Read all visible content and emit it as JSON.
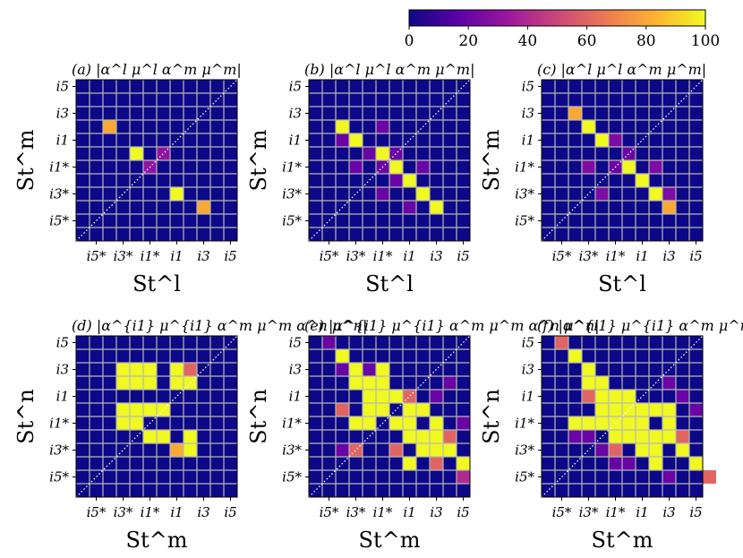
{
  "colorbar": {
    "ticks": [
      "0",
      "20",
      "40",
      "60",
      "80",
      "100"
    ],
    "stops": [
      "#0d0887",
      "#5c01a6",
      "#9c179e",
      "#cc4778",
      "#ed7953",
      "#fdb42f",
      "#f0f921"
    ]
  },
  "chart_data": [
    {
      "type": "heatmap",
      "panel": "(a)",
      "title": "(a) |α^l μ^l α^m μ^m|",
      "xlabel": "St^l",
      "ylabel": "St^m",
      "ticks": [
        "i5*",
        "i3*",
        "i1*",
        "i1",
        "i3",
        "i5"
      ],
      "grid_size": 12,
      "range": [
        0,
        100
      ],
      "cells": [
        [
          7,
          3,
          100
        ],
        [
          9,
          2,
          80
        ],
        [
          4,
          6,
          100
        ],
        [
          2,
          8,
          80
        ],
        [
          5,
          5,
          30
        ],
        [
          6,
          6,
          30
        ]
      ]
    },
    {
      "type": "heatmap",
      "panel": "(b)",
      "title": "(b) |α^l μ^l α^m μ^m|",
      "xlabel": "St^l",
      "ylabel": "St^m",
      "ticks": [
        "i5*",
        "i3*",
        "i1*",
        "i1",
        "i3",
        "i5"
      ],
      "grid_size": 12,
      "range": [
        0,
        100
      ],
      "cells": [
        [
          2,
          8,
          100
        ],
        [
          3,
          7,
          100
        ],
        [
          5,
          6,
          100
        ],
        [
          6,
          5,
          100
        ],
        [
          7,
          4,
          100
        ],
        [
          8,
          3,
          100
        ],
        [
          9,
          2,
          100
        ],
        [
          5,
          5,
          20
        ],
        [
          6,
          6,
          20
        ],
        [
          5,
          3,
          20
        ],
        [
          3,
          5,
          20
        ],
        [
          8,
          5,
          20
        ],
        [
          5,
          8,
          20
        ],
        [
          7,
          2,
          20
        ],
        [
          2,
          7,
          20
        ],
        [
          4,
          6,
          20
        ],
        [
          6,
          4,
          20
        ]
      ]
    },
    {
      "type": "heatmap",
      "panel": "(c)",
      "title": "(c) |α^l μ^l α^m μ^m|",
      "xlabel": "St^l",
      "ylabel": "St^m",
      "ticks": [
        "i5*",
        "i3*",
        "i1*",
        "i1",
        "i3",
        "i5"
      ],
      "grid_size": 12,
      "range": [
        0,
        100
      ],
      "cells": [
        [
          2,
          9,
          80
        ],
        [
          3,
          8,
          100
        ],
        [
          4,
          7,
          100
        ],
        [
          6,
          5,
          100
        ],
        [
          7,
          4,
          100
        ],
        [
          8,
          3,
          100
        ],
        [
          9,
          2,
          80
        ],
        [
          3,
          5,
          25
        ],
        [
          8,
          5,
          25
        ],
        [
          5,
          7,
          25
        ],
        [
          4,
          3,
          25
        ],
        [
          9,
          3,
          25
        ],
        [
          6,
          6,
          20
        ],
        [
          5,
          5,
          20
        ]
      ]
    },
    {
      "type": "heatmap",
      "panel": "(d)",
      "title": "(d) |α^{i1} μ^{i1} α^m μ^m α^n μ^n|",
      "xlabel": "St^m",
      "ylabel": "St^n",
      "ticks": [
        "i5*",
        "i3*",
        "i1*",
        "i1",
        "i3",
        "i5"
      ],
      "grid_size": 12,
      "range": [
        0,
        100
      ],
      "cells": [
        [
          5,
          4,
          100
        ],
        [
          6,
          4,
          100
        ],
        [
          5,
          6,
          100
        ],
        [
          6,
          6,
          100
        ],
        [
          8,
          4,
          100
        ],
        [
          8,
          3,
          100
        ],
        [
          7,
          3,
          80
        ],
        [
          4,
          5,
          100
        ],
        [
          4,
          6,
          100
        ],
        [
          3,
          5,
          100
        ],
        [
          3,
          6,
          100
        ],
        [
          3,
          8,
          100
        ],
        [
          4,
          8,
          100
        ],
        [
          5,
          8,
          100
        ],
        [
          3,
          9,
          100
        ],
        [
          4,
          9,
          100
        ],
        [
          5,
          9,
          100
        ],
        [
          7,
          8,
          100
        ],
        [
          8,
          8,
          100
        ],
        [
          7,
          9,
          100
        ],
        [
          8,
          9,
          60
        ]
      ]
    },
    {
      "type": "heatmap",
      "panel": "(e)",
      "title": "(e) |α^{i1} μ^{i1} α^m μ^m α^n μ^n|",
      "xlabel": "St^m",
      "ylabel": "St^n",
      "ticks": [
        "i5*",
        "i3*",
        "i1*",
        "i1",
        "i3",
        "i5"
      ],
      "grid_size": 12,
      "range": [
        0,
        100
      ],
      "cells": [
        [
          2,
          10,
          100
        ],
        [
          3,
          9,
          100
        ],
        [
          3,
          8,
          100
        ],
        [
          4,
          8,
          100
        ],
        [
          5,
          8,
          100
        ],
        [
          4,
          7,
          100
        ],
        [
          5,
          7,
          100
        ],
        [
          6,
          7,
          100
        ],
        [
          4,
          6,
          100
        ],
        [
          5,
          6,
          100
        ],
        [
          7,
          6,
          100
        ],
        [
          8,
          6,
          100
        ],
        [
          9,
          5,
          100
        ],
        [
          9,
          4,
          100
        ],
        [
          10,
          3,
          100
        ],
        [
          11,
          2,
          100
        ],
        [
          7,
          2,
          100
        ],
        [
          8,
          3,
          100
        ],
        [
          9,
          3,
          100
        ],
        [
          8,
          4,
          100
        ],
        [
          7,
          5,
          100
        ],
        [
          7,
          4,
          100
        ],
        [
          6,
          5,
          100
        ],
        [
          4,
          5,
          100
        ],
        [
          3,
          5,
          100
        ],
        [
          5,
          9,
          100
        ],
        [
          3,
          3,
          60
        ],
        [
          7,
          7,
          60
        ],
        [
          9,
          2,
          60
        ],
        [
          10,
          4,
          60
        ],
        [
          2,
          6,
          60
        ],
        [
          6,
          3,
          60
        ],
        [
          11,
          1,
          40
        ],
        [
          1,
          11,
          20
        ],
        [
          2,
          3,
          20
        ],
        [
          9,
          7,
          20
        ],
        [
          10,
          8,
          20
        ],
        [
          11,
          5,
          20
        ],
        [
          4,
          9,
          20
        ],
        [
          2,
          9,
          20
        ]
      ]
    },
    {
      "type": "heatmap",
      "panel": "(f)",
      "title": "(f) |α^{i1} μ^{i1} α^m μ^m α^n μ^n|",
      "xlabel": "St^m",
      "ylabel": "St^n",
      "ticks": [
        "i5*",
        "i3*",
        "i1*",
        "i1",
        "i3",
        "i5"
      ],
      "grid_size": 12,
      "range": [
        0,
        100
      ],
      "cells": [
        [
          1,
          11,
          60
        ],
        [
          2,
          10,
          100
        ],
        [
          3,
          9,
          100
        ],
        [
          3,
          8,
          100
        ],
        [
          4,
          8,
          100
        ],
        [
          4,
          7,
          100
        ],
        [
          5,
          7,
          100
        ],
        [
          6,
          7,
          100
        ],
        [
          4,
          6,
          100
        ],
        [
          5,
          6,
          100
        ],
        [
          6,
          6,
          100
        ],
        [
          7,
          6,
          100
        ],
        [
          8,
          6,
          100
        ],
        [
          9,
          6,
          100
        ],
        [
          5,
          5,
          100
        ],
        [
          6,
          5,
          100
        ],
        [
          7,
          5,
          100
        ],
        [
          6,
          4,
          100
        ],
        [
          7,
          4,
          100
        ],
        [
          8,
          4,
          100
        ],
        [
          9,
          4,
          100
        ],
        [
          2,
          5,
          100
        ],
        [
          3,
          5,
          100
        ],
        [
          4,
          5,
          100
        ],
        [
          5,
          4,
          100
        ],
        [
          9,
          5,
          100
        ],
        [
          7,
          3,
          100
        ],
        [
          8,
          3,
          100
        ],
        [
          10,
          3,
          100
        ],
        [
          11,
          2,
          100
        ],
        [
          8,
          2,
          100
        ],
        [
          12,
          1,
          60
        ],
        [
          3,
          7,
          60
        ],
        [
          5,
          3,
          60
        ],
        [
          10,
          4,
          60
        ],
        [
          11,
          6,
          20
        ],
        [
          10,
          7,
          20
        ],
        [
          9,
          8,
          20
        ],
        [
          2,
          4,
          20
        ],
        [
          3,
          4,
          20
        ],
        [
          4,
          3,
          20
        ],
        [
          5,
          2,
          20
        ],
        [
          6,
          2,
          20
        ],
        [
          9,
          1,
          20
        ]
      ]
    }
  ]
}
